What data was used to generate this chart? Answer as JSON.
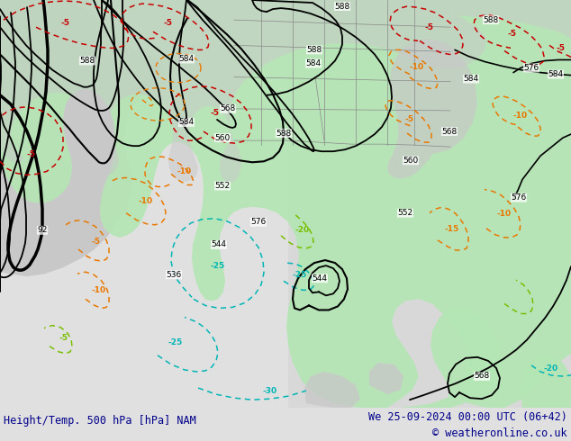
{
  "title_left": "Height/Temp. 500 hPa [hPa] NAM",
  "title_right": "We 25-09-2024 00:00 UTC (06+42)",
  "copyright": "© weatheronline.co.uk",
  "title_color": "#00008B",
  "bg_color": "#e0e0e0",
  "green_fill": "#b4e6b4",
  "land_gray": "#c8c8c8",
  "ocean_gray": "#d8d8d8",
  "fig_width": 6.34,
  "fig_height": 4.9,
  "dpi": 100
}
